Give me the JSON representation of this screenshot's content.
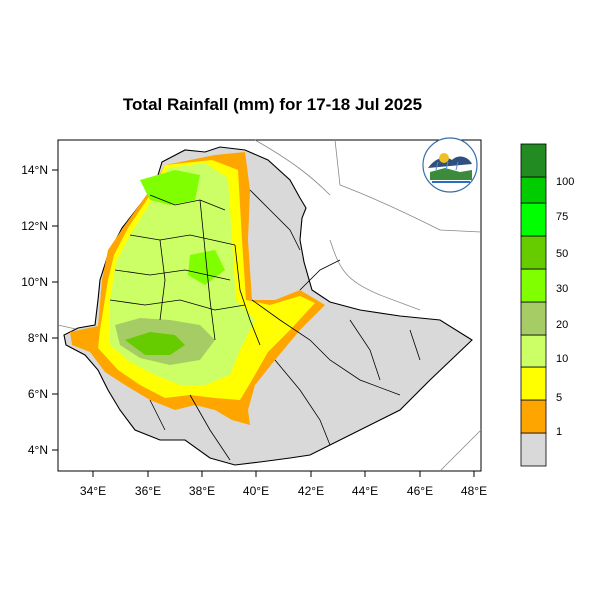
{
  "title": "Total Rainfall (mm) for 17-18 Jul 2025",
  "map": {
    "x_range": [
      33,
      48
    ],
    "y_range": [
      3.2,
      15
    ],
    "x_ticks": [
      "34°E",
      "36°E",
      "38°E",
      "40°E",
      "42°E",
      "44°E",
      "46°E",
      "48°E"
    ],
    "y_ticks": [
      "14°N",
      "12°N",
      "10°N",
      "8°N",
      "6°N",
      "4°N"
    ],
    "logo_icon": "meteorology-agency-logo"
  },
  "legend": {
    "classes": [
      {
        "color": "#d9d9d9"
      },
      {
        "color": "#ffa500"
      },
      {
        "color": "#ffff00"
      },
      {
        "color": "#ccff66"
      },
      {
        "color": "#a6cc66"
      },
      {
        "color": "#80ff00"
      },
      {
        "color": "#66cc00"
      },
      {
        "color": "#00ff00"
      },
      {
        "color": "#00cc00"
      },
      {
        "color": "#228b22"
      }
    ],
    "labels": [
      "1",
      "5",
      "10",
      "20",
      "30",
      "50",
      "75",
      "100"
    ]
  },
  "colors": {
    "land": "#d9d9d9",
    "orange": "#ffa500",
    "yellow": "#ffff00",
    "light_green": "#ccff66",
    "olive": "#a6cc66",
    "green": "#66cc00",
    "bright_green": "#80ff00"
  }
}
